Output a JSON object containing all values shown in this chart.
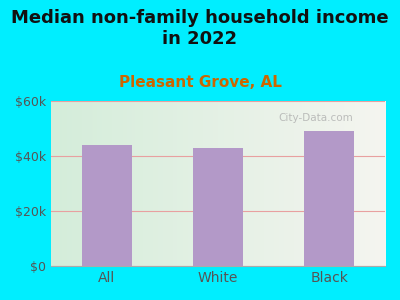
{
  "title_line1": "Median non-family household income",
  "title_line2": "in 2022",
  "subtitle": "Pleasant Grove, AL",
  "categories": [
    "All",
    "White",
    "Black"
  ],
  "values": [
    44000,
    43000,
    49000
  ],
  "bar_color": "#b399c8",
  "title_fontsize": 13,
  "subtitle_fontsize": 11,
  "subtitle_color": "#cc6600",
  "title_color": "#111111",
  "tick_color": "#555555",
  "background_outer": "#00eeff",
  "background_plot_left": "#d4edda",
  "background_plot_right": "#f5f5f0",
  "ylim": [
    0,
    60000
  ],
  "yticks": [
    0,
    20000,
    40000,
    60000
  ],
  "ytick_labels": [
    "$0",
    "$20k",
    "$40k",
    "$60k"
  ],
  "grid_color": "#e8a0a0",
  "watermark": "City-Data.com"
}
